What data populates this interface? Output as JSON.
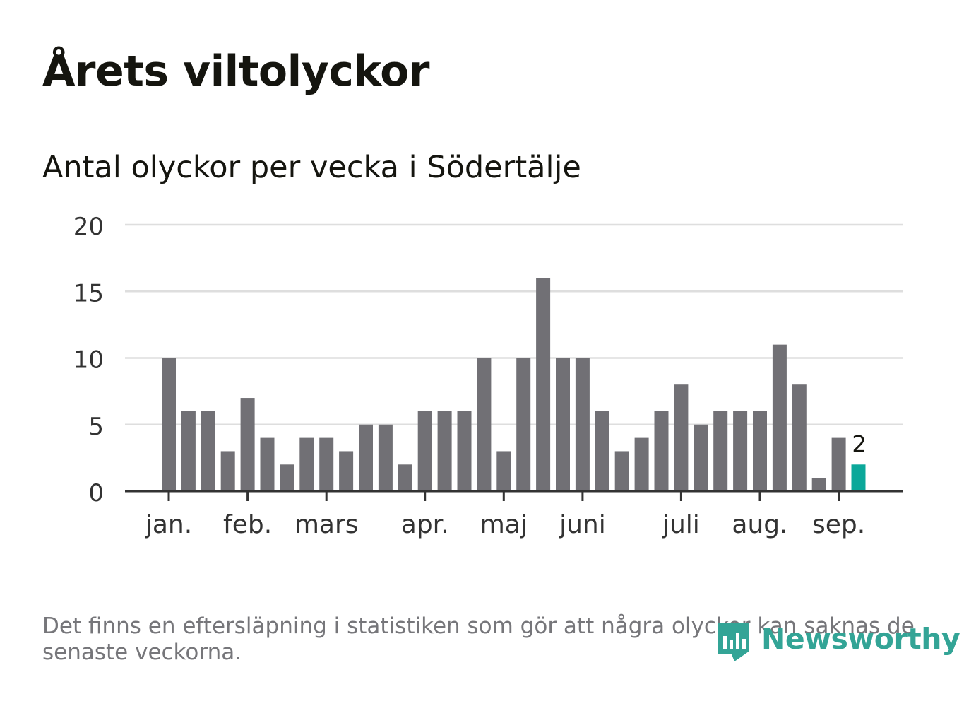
{
  "colors": {
    "bar": "#717075",
    "highlight": "#0ba89a",
    "grid": "#dedede",
    "axis": "#333333",
    "text": "#15150f",
    "muted": "#76767a",
    "brand": "#33a496"
  },
  "header": {
    "title": "Årets viltolyckor"
  },
  "chart_data": {
    "type": "bar",
    "title": "Antal olyckor per vecka i Södertälje",
    "xlabel": "",
    "ylabel": "",
    "ylim": [
      0,
      20
    ],
    "yticks": [
      0,
      5,
      10,
      15,
      20
    ],
    "grid": true,
    "values": [
      10,
      6,
      6,
      3,
      7,
      4,
      2,
      4,
      4,
      3,
      5,
      5,
      2,
      6,
      6,
      6,
      10,
      3,
      10,
      16,
      10,
      10,
      6,
      3,
      4,
      6,
      8,
      5,
      6,
      6,
      6,
      11,
      8,
      1,
      4,
      2
    ],
    "highlight_index": 35,
    "highlight_label": "2",
    "month_ticks": [
      {
        "label": "jan.",
        "week": 0
      },
      {
        "label": "feb.",
        "week": 4
      },
      {
        "label": "mars",
        "week": 8
      },
      {
        "label": "apr.",
        "week": 13
      },
      {
        "label": "maj",
        "week": 17
      },
      {
        "label": "juni",
        "week": 21
      },
      {
        "label": "juli",
        "week": 26
      },
      {
        "label": "aug.",
        "week": 30
      },
      {
        "label": "sep.",
        "week": 34
      }
    ]
  },
  "footer": {
    "note": "Det finns en eftersläpning i statistiken som gör att några olyckor kan saknas de senaste veckorna.",
    "brand": "Newsworthy",
    "brand_icon": "newsworthy-logo-icon"
  }
}
